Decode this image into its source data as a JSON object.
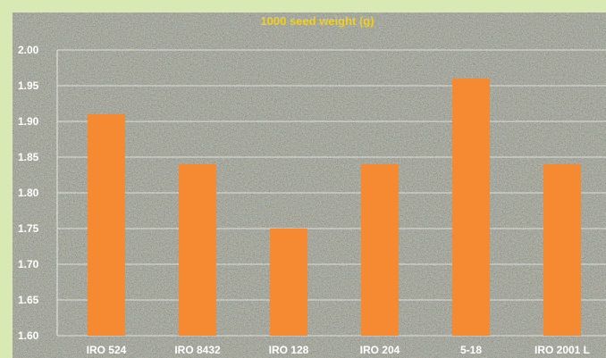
{
  "chart_data": {
    "type": "bar",
    "title": "1000 seed weight (g)",
    "categories": [
      "IRO 524",
      "IRO 8432",
      "IRO 128",
      "IRO 204",
      "5-18",
      "IRO 2001 L"
    ],
    "values": [
      1.91,
      1.84,
      1.75,
      1.84,
      1.96,
      1.84
    ],
    "ylim": [
      1.6,
      2.0
    ],
    "yticks": [
      "1.60",
      "1.65",
      "1.70",
      "1.75",
      "1.80",
      "1.85",
      "1.90",
      "1.95",
      "2.00"
    ],
    "grid": true,
    "xlabel": "",
    "ylabel": ""
  },
  "colors": {
    "bar": "#f58a33",
    "title": "#f0d020",
    "gridline": "#e8e8e8",
    "plot_background": "#3e3e36",
    "frame": "#d8e9b4"
  }
}
